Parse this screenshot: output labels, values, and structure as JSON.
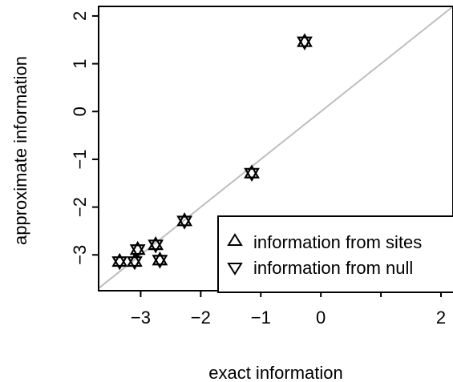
{
  "chart_data": {
    "type": "scatter",
    "title": "",
    "xlabel": "exact information",
    "ylabel": "approximate information",
    "xlim": [
      -3.7,
      2.2
    ],
    "ylim": [
      -3.75,
      2.2
    ],
    "xticks": [
      -3,
      -2,
      -1,
      0,
      1,
      2
    ],
    "xtick_labels": [
      "−3",
      "−2",
      "−1",
      "0",
      "",
      "2"
    ],
    "yticks": [
      -3,
      -2,
      -1,
      0,
      1,
      2
    ],
    "ytick_labels": [
      "−3",
      "−2",
      "−1",
      "0",
      "1",
      "2"
    ],
    "grid": false,
    "reference_line": {
      "slope": 1,
      "intercept": 0,
      "color": "#bebebe"
    },
    "series": [
      {
        "name": "information from sites",
        "marker": "triangle-up",
        "x": [
          -0.27,
          -1.15,
          -2.27,
          -2.75,
          -3.05,
          -2.68,
          -3.35,
          -3.1
        ],
        "y": [
          1.47,
          -1.28,
          -2.28,
          -2.78,
          -2.88,
          -3.1,
          -3.13,
          -3.13
        ]
      },
      {
        "name": "information from null",
        "marker": "triangle-down",
        "x": [
          -0.27,
          -1.15,
          -2.27,
          -2.75,
          -3.05,
          -2.68,
          -3.35,
          -3.1
        ],
        "y": [
          1.45,
          -1.3,
          -2.3,
          -2.8,
          -2.9,
          -3.12,
          -3.15,
          -3.15
        ]
      }
    ],
    "legend_position": "bottom-right",
    "colors": {
      "points": "#000000",
      "reference_line": "#bebebe",
      "axes": "#000000"
    }
  }
}
